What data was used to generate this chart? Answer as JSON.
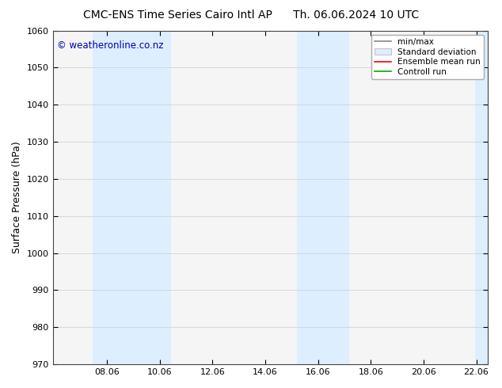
{
  "title_left": "CMC-ENS Time Series Cairo Intl AP",
  "title_right": "Th. 06.06.2024 10 UTC",
  "ylabel": "Surface Pressure (hPa)",
  "ylim": [
    970,
    1060
  ],
  "yticks": [
    970,
    980,
    990,
    1000,
    1010,
    1020,
    1030,
    1040,
    1050,
    1060
  ],
  "xlim_start": 6.0,
  "xlim_end": 22.5,
  "xticks": [
    8.06,
    10.06,
    12.06,
    14.06,
    16.06,
    18.06,
    20.06,
    22.06
  ],
  "xtick_labels": [
    "08.06",
    "10.06",
    "12.06",
    "14.06",
    "16.06",
    "18.06",
    "20.06",
    "22.06"
  ],
  "shaded_bands": [
    {
      "x_start": 7.5,
      "x_end": 10.5,
      "color": "#ddeeff"
    },
    {
      "x_start": 15.25,
      "x_end": 17.25,
      "color": "#ddeeff"
    },
    {
      "x_start": 22.0,
      "x_end": 22.5,
      "color": "#ddeeff"
    }
  ],
  "watermark_text": "© weatheronline.co.nz",
  "watermark_color": "#0000bb",
  "background_color": "#ffffff",
  "plot_bg_color": "#f5f5f5",
  "legend_items": [
    {
      "label": "min/max",
      "color": "#aaaaaa",
      "style": "minmax"
    },
    {
      "label": "Standard deviation",
      "color": "#ddeeff",
      "style": "fill"
    },
    {
      "label": "Ensemble mean run",
      "color": "#ff0000",
      "style": "line"
    },
    {
      "label": "Controll run",
      "color": "#00aa00",
      "style": "line"
    }
  ],
  "title_fontsize": 10,
  "axis_fontsize": 9,
  "tick_fontsize": 8,
  "legend_fontsize": 7.5
}
